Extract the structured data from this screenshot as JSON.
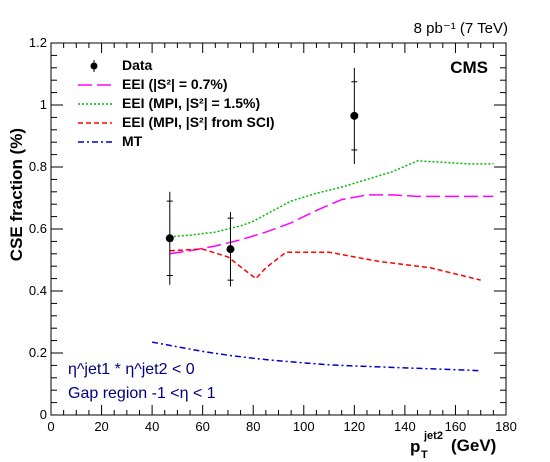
{
  "chart_data": {
    "type": "line",
    "lumi_label": "8 pb⁻¹ (7 TeV)",
    "experiment_label": "CMS",
    "xlabel": "p_T^jet2 (GeV)",
    "xlabel_main": "p",
    "xlabel_sub": "T",
    "xlabel_sup": "jet2",
    "xlabel_unit": "(GeV)",
    "ylabel": "CSE fraction (%)",
    "xlim": [
      0,
      180
    ],
    "ylim": [
      0,
      1.2
    ],
    "x_ticks": [
      "0",
      "20",
      "40",
      "60",
      "80",
      "100",
      "120",
      "140",
      "160",
      "180"
    ],
    "y_ticks": [
      "0",
      "0.2",
      "0.4",
      "0.6",
      "0.8",
      "1",
      "1.2"
    ],
    "grid": false,
    "legend_position": "top-left",
    "annotations": {
      "eta_line": "η^jet1 * η^jet2 < 0",
      "gap_line": "Gap region -1 <η < 1"
    },
    "data_points": {
      "name": "Data",
      "color": "#000000",
      "points": [
        {
          "x": 47,
          "y": 0.57,
          "err_stat": 0.12,
          "err_tot": 0.15
        },
        {
          "x": 71,
          "y": 0.535,
          "err_stat": 0.1,
          "err_tot": 0.12
        },
        {
          "x": 120,
          "y": 0.965,
          "err_stat": 0.11,
          "err_tot": 0.155
        }
      ]
    },
    "series": [
      {
        "name": "EEI (|S²| = 0.7%)",
        "color": "#ff00ff",
        "dash": "long",
        "x": [
          47,
          55,
          65,
          75,
          85,
          95,
          105,
          115,
          125,
          135,
          145,
          155,
          165,
          175
        ],
        "y": [
          0.52,
          0.53,
          0.545,
          0.565,
          0.59,
          0.62,
          0.66,
          0.695,
          0.71,
          0.71,
          0.705,
          0.705,
          0.705,
          0.705
        ]
      },
      {
        "name": "EEI (MPI, |S²| = 1.5%)",
        "color": "#00bb00",
        "dash": "dot",
        "x": [
          47,
          55,
          65,
          75,
          80,
          88,
          95,
          105,
          115,
          125,
          135,
          145,
          155,
          165,
          175
        ],
        "y": [
          0.575,
          0.58,
          0.59,
          0.61,
          0.625,
          0.66,
          0.69,
          0.715,
          0.735,
          0.76,
          0.785,
          0.82,
          0.815,
          0.81,
          0.81
        ]
      },
      {
        "name": "EEI (MPI, |S²| from SCI)",
        "color": "#ff0000",
        "dash": "short",
        "x": [
          47,
          60,
          70,
          81,
          85,
          93,
          100,
          110,
          120,
          130,
          140,
          150,
          160,
          170
        ],
        "y": [
          0.53,
          0.535,
          0.51,
          0.44,
          0.475,
          0.525,
          0.525,
          0.525,
          0.51,
          0.495,
          0.485,
          0.475,
          0.455,
          0.435
        ]
      },
      {
        "name": "MT",
        "color": "#0000cc",
        "dash": "dashdot",
        "x": [
          40,
          50,
          60,
          70,
          80,
          90,
          100,
          110,
          120,
          130,
          140,
          150,
          160,
          170
        ],
        "y": [
          0.235,
          0.22,
          0.205,
          0.193,
          0.183,
          0.175,
          0.168,
          0.162,
          0.158,
          0.155,
          0.152,
          0.149,
          0.146,
          0.143
        ]
      }
    ]
  }
}
